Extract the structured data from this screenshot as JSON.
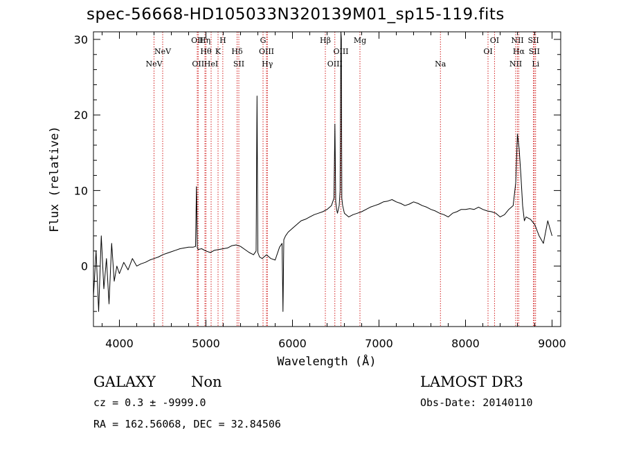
{
  "chart_data": {
    "type": "line",
    "title": "spec-56668-HD105033N320139M01_sp15-119.fits",
    "xlabel": "Wavelength (Å)",
    "ylabel": "Flux (relative)",
    "xlim": [
      3700,
      9100
    ],
    "ylim": [
      -8,
      31
    ],
    "xticks": [
      4000,
      5000,
      6000,
      7000,
      8000,
      9000
    ],
    "yticks": [
      0,
      10,
      20,
      30
    ],
    "grid": false,
    "line_color": "#000000",
    "marker_color": "#cc0000",
    "series": [
      {
        "x": [
          3700,
          3730,
          3760,
          3790,
          3820,
          3850,
          3880,
          3910,
          3940,
          3970,
          4000,
          4050,
          4100,
          4150,
          4200,
          4250,
          4300,
          4350,
          4400,
          4450,
          4500,
          4550,
          4600,
          4650,
          4700,
          4750,
          4800,
          4850,
          4880,
          4890,
          4900,
          4910,
          4950,
          5000,
          5050,
          5100,
          5150,
          5200,
          5250,
          5300,
          5350,
          5400,
          5450,
          5500,
          5550,
          5580,
          5590,
          5600,
          5620,
          5650,
          5700,
          5750,
          5800,
          5850,
          5880,
          5890,
          5900,
          5920,
          5950,
          6000,
          6050,
          6100,
          6150,
          6200,
          6250,
          6300,
          6350,
          6400,
          6450,
          6480,
          6490,
          6500,
          6510,
          6520,
          6540,
          6550,
          6560,
          6565,
          6570,
          6580,
          6600,
          6650,
          6700,
          6750,
          6800,
          6850,
          6900,
          6950,
          7000,
          7050,
          7100,
          7150,
          7200,
          7250,
          7300,
          7350,
          7400,
          7450,
          7500,
          7550,
          7600,
          7650,
          7700,
          7750,
          7800,
          7850,
          7900,
          7950,
          8000,
          8050,
          8100,
          8150,
          8200,
          8250,
          8300,
          8350,
          8400,
          8450,
          8500,
          8550,
          8580,
          8600,
          8620,
          8640,
          8660,
          8680,
          8700,
          8750,
          8800,
          8850,
          8900,
          8950,
          9000
        ],
        "y": [
          -4,
          2,
          -6,
          4,
          -3,
          1,
          -5,
          3,
          -2,
          0,
          -1,
          0.5,
          -0.5,
          1,
          0,
          0.3,
          0.5,
          0.8,
          1,
          1.2,
          1.5,
          1.7,
          1.9,
          2.1,
          2.3,
          2.4,
          2.5,
          2.5,
          2.6,
          10.5,
          2.4,
          2.2,
          2.3,
          2.0,
          1.8,
          2.1,
          2.2,
          2.3,
          2.4,
          2.7,
          2.8,
          2.6,
          2.2,
          1.8,
          1.5,
          2,
          22.5,
          1.8,
          1.2,
          1.0,
          1.5,
          1.0,
          0.8,
          2.5,
          3.0,
          -6,
          3.5,
          4.0,
          4.5,
          5.0,
          5.5,
          6.0,
          6.2,
          6.5,
          6.8,
          7.0,
          7.2,
          7.5,
          8.0,
          9.0,
          18.8,
          8.5,
          7.5,
          7.0,
          8.0,
          10.0,
          31,
          30,
          9.0,
          8.0,
          7.0,
          6.5,
          6.8,
          7.0,
          7.2,
          7.5,
          7.8,
          8.0,
          8.2,
          8.5,
          8.6,
          8.8,
          8.5,
          8.3,
          8.0,
          8.2,
          8.5,
          8.3,
          8.0,
          7.8,
          7.5,
          7.3,
          7.0,
          6.8,
          6.5,
          7.0,
          7.2,
          7.5,
          7.5,
          7.6,
          7.5,
          7.8,
          7.5,
          7.3,
          7.2,
          7.0,
          6.5,
          6.8,
          7.5,
          8.0,
          11.0,
          17.5,
          15.5,
          12.0,
          8.0,
          6.0,
          6.5,
          6.2,
          5.5,
          4.0,
          3.0,
          6.0,
          4.0
        ]
      }
    ],
    "markers": [
      {
        "label": "NeV",
        "wl": 4400,
        "row": 3
      },
      {
        "label": "NeV",
        "wl": 4500,
        "row": 2
      },
      {
        "label": "OII",
        "wl": 4900,
        "row": 1
      },
      {
        "label": "OII",
        "wl": 4910,
        "row": 3
      },
      {
        "label": "Hη",
        "wl": 4988,
        "row": 1
      },
      {
        "label": "Hθ",
        "wl": 5000,
        "row": 2
      },
      {
        "label": "HeI",
        "wl": 5060,
        "row": 3
      },
      {
        "label": "K",
        "wl": 5140,
        "row": 2
      },
      {
        "label": "H",
        "wl": 5195,
        "row": 1
      },
      {
        "label": "Hδ",
        "wl": 5360,
        "row": 2
      },
      {
        "label": "SII",
        "wl": 5380,
        "row": 3
      },
      {
        "label": "G",
        "wl": 5660,
        "row": 1
      },
      {
        "label": "OIII",
        "wl": 5700,
        "row": 2
      },
      {
        "label": "Hγ",
        "wl": 5710,
        "row": 3
      },
      {
        "label": "Hβ",
        "wl": 6380,
        "row": 1
      },
      {
        "label": "OIII",
        "wl": 6490,
        "row": 3
      },
      {
        "label": "OIII",
        "wl": 6560,
        "row": 2
      },
      {
        "label": "Mg",
        "wl": 6780,
        "row": 1
      },
      {
        "label": "Na",
        "wl": 7710,
        "row": 3
      },
      {
        "label": "OI",
        "wl": 8260,
        "row": 2
      },
      {
        "label": "OI",
        "wl": 8335,
        "row": 1
      },
      {
        "label": "NII",
        "wl": 8580,
        "row": 3
      },
      {
        "label": "NII",
        "wl": 8600,
        "row": 1
      },
      {
        "label": "Hα",
        "wl": 8615,
        "row": 2
      },
      {
        "label": "SII",
        "wl": 8785,
        "row": 1
      },
      {
        "label": "SII",
        "wl": 8795,
        "row": 2
      },
      {
        "label": "Li",
        "wl": 8810,
        "row": 3
      }
    ]
  },
  "info": {
    "object_class": "GALAXY",
    "subclass": "Non",
    "survey": "LAMOST DR3",
    "redshift": "cz = 0.3 ± -9999.0",
    "obs_date": "Obs-Date: 20140110",
    "coords": "RA = 162.56068, DEC =  32.84506"
  }
}
